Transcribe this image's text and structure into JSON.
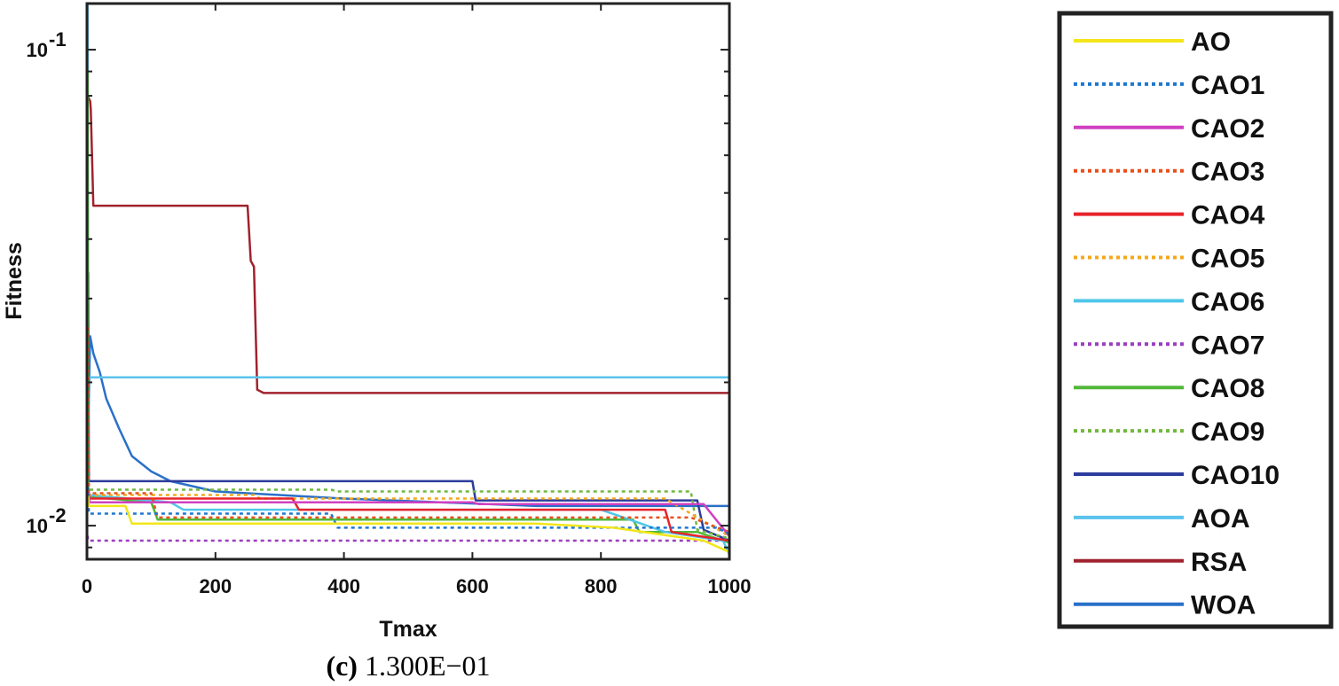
{
  "chart_data": {
    "type": "line",
    "xlabel": "Tmax",
    "ylabel": "Fitness",
    "xlim": [
      0,
      1000
    ],
    "ylim": [
      0.0085,
      0.125
    ],
    "yscale": "log",
    "grid": false,
    "legend_position": "right",
    "xticks": [
      "0",
      "200",
      "400",
      "600",
      "800",
      "1000"
    ],
    "yticks": [
      {
        "base": "10",
        "exp": "-1",
        "value": 0.1
      },
      {
        "base": "10",
        "exp": "-2",
        "value": 0.01
      }
    ],
    "series": [
      {
        "name": "AO",
        "color": "#f2e61a",
        "dash": "solid",
        "x": [
          0,
          2,
          3,
          60,
          70,
          100,
          450,
          500,
          700,
          820,
          960,
          1000
        ],
        "y": [
          0.0115,
          0.0115,
          0.011,
          0.011,
          0.0101,
          0.0101,
          0.0101,
          0.0101,
          0.0101,
          0.0099,
          0.0093,
          0.0088
        ]
      },
      {
        "name": "CAO1",
        "color": "#1f77d0",
        "dash": "dotted",
        "x": [
          0,
          2,
          3,
          380,
          390,
          700,
          980,
          1000
        ],
        "y": [
          0.012,
          0.012,
          0.0106,
          0.0106,
          0.0099,
          0.0099,
          0.0099,
          0.0096
        ]
      },
      {
        "name": "CAO2",
        "color": "#d040c0",
        "dash": "solid",
        "x": [
          0,
          3,
          4,
          600,
          610,
          960,
          1000
        ],
        "y": [
          0.0117,
          0.0117,
          0.0112,
          0.0112,
          0.0111,
          0.0111,
          0.0095
        ]
      },
      {
        "name": "CAO3",
        "color": "#e8501a",
        "dash": "dotted",
        "x": [
          0,
          2,
          3,
          100,
          110,
          940,
          1000
        ],
        "y": [
          0.026,
          0.026,
          0.0117,
          0.0117,
          0.0104,
          0.0104,
          0.0097
        ]
      },
      {
        "name": "CAO4",
        "color": "#e8232a",
        "dash": "solid",
        "x": [
          0,
          2,
          3,
          320,
          330,
          900,
          910,
          1000
        ],
        "y": [
          0.0116,
          0.0116,
          0.0114,
          0.0114,
          0.0108,
          0.0108,
          0.0097,
          0.0093
        ]
      },
      {
        "name": "CAO5",
        "color": "#f4a81a",
        "dash": "dotted",
        "x": [
          0,
          2,
          3,
          260,
          270,
          900,
          910,
          1000
        ],
        "y": [
          0.012,
          0.012,
          0.0116,
          0.0116,
          0.0114,
          0.0114,
          0.0112,
          0.0095
        ]
      },
      {
        "name": "CAO6",
        "color": "#4fc6e8",
        "dash": "solid",
        "x": [
          0,
          2,
          3,
          130,
          150,
          800,
          900,
          990,
          1000
        ],
        "y": [
          0.0118,
          0.0118,
          0.0116,
          0.0112,
          0.0108,
          0.0108,
          0.0097,
          0.0093,
          0.0087
        ]
      },
      {
        "name": "CAO7",
        "color": "#9a3ec0",
        "dash": "dotted",
        "x": [
          0,
          1,
          2,
          1000
        ],
        "y": [
          0.0095,
          0.0095,
          0.0093,
          0.0093
        ]
      },
      {
        "name": "CAO8",
        "color": "#52b83a",
        "dash": "solid",
        "x": [
          0,
          1,
          2,
          100,
          110,
          850,
          860,
          950,
          1000
        ],
        "y": [
          0.09,
          0.09,
          0.0115,
          0.0112,
          0.0103,
          0.0103,
          0.0097,
          0.0097,
          0.0092
        ]
      },
      {
        "name": "CAO9",
        "color": "#72b840",
        "dash": "dotted",
        "x": [
          0,
          2,
          3,
          380,
          390,
          940,
          950,
          1000
        ],
        "y": [
          0.0122,
          0.0122,
          0.0119,
          0.0119,
          0.0118,
          0.0118,
          0.0098,
          0.0094
        ]
      },
      {
        "name": "CAO10",
        "color": "#2c3c9c",
        "dash": "solid",
        "x": [
          0,
          2,
          3,
          600,
          605,
          950,
          960,
          1000
        ],
        "y": [
          0.034,
          0.034,
          0.0124,
          0.0124,
          0.0113,
          0.0113,
          0.0098,
          0.0093
        ]
      },
      {
        "name": "AOA",
        "color": "#5ac3ec",
        "dash": "solid",
        "x": [
          0,
          1,
          2,
          1000
        ],
        "y": [
          0.125,
          0.125,
          0.0205,
          0.0205
        ]
      },
      {
        "name": "RSA",
        "color": "#a0222e",
        "dash": "solid",
        "x": [
          0,
          1,
          5,
          6,
          10,
          250,
          255,
          260,
          265,
          275,
          1000
        ],
        "y": [
          0.08,
          0.08,
          0.078,
          0.075,
          0.047,
          0.047,
          0.036,
          0.035,
          0.0193,
          0.019,
          0.019
        ]
      },
      {
        "name": "WOA",
        "color": "#2a70c8",
        "dash": "solid",
        "x": [
          0,
          5,
          10,
          20,
          30,
          50,
          70,
          100,
          130,
          200,
          400,
          700,
          1000
        ],
        "y": [
          0.0125,
          0.025,
          0.023,
          0.021,
          0.0185,
          0.016,
          0.014,
          0.013,
          0.0124,
          0.0118,
          0.0114,
          0.011,
          0.011
        ]
      }
    ]
  },
  "caption": {
    "label": "(c)",
    "text": " 1.300E−01"
  }
}
